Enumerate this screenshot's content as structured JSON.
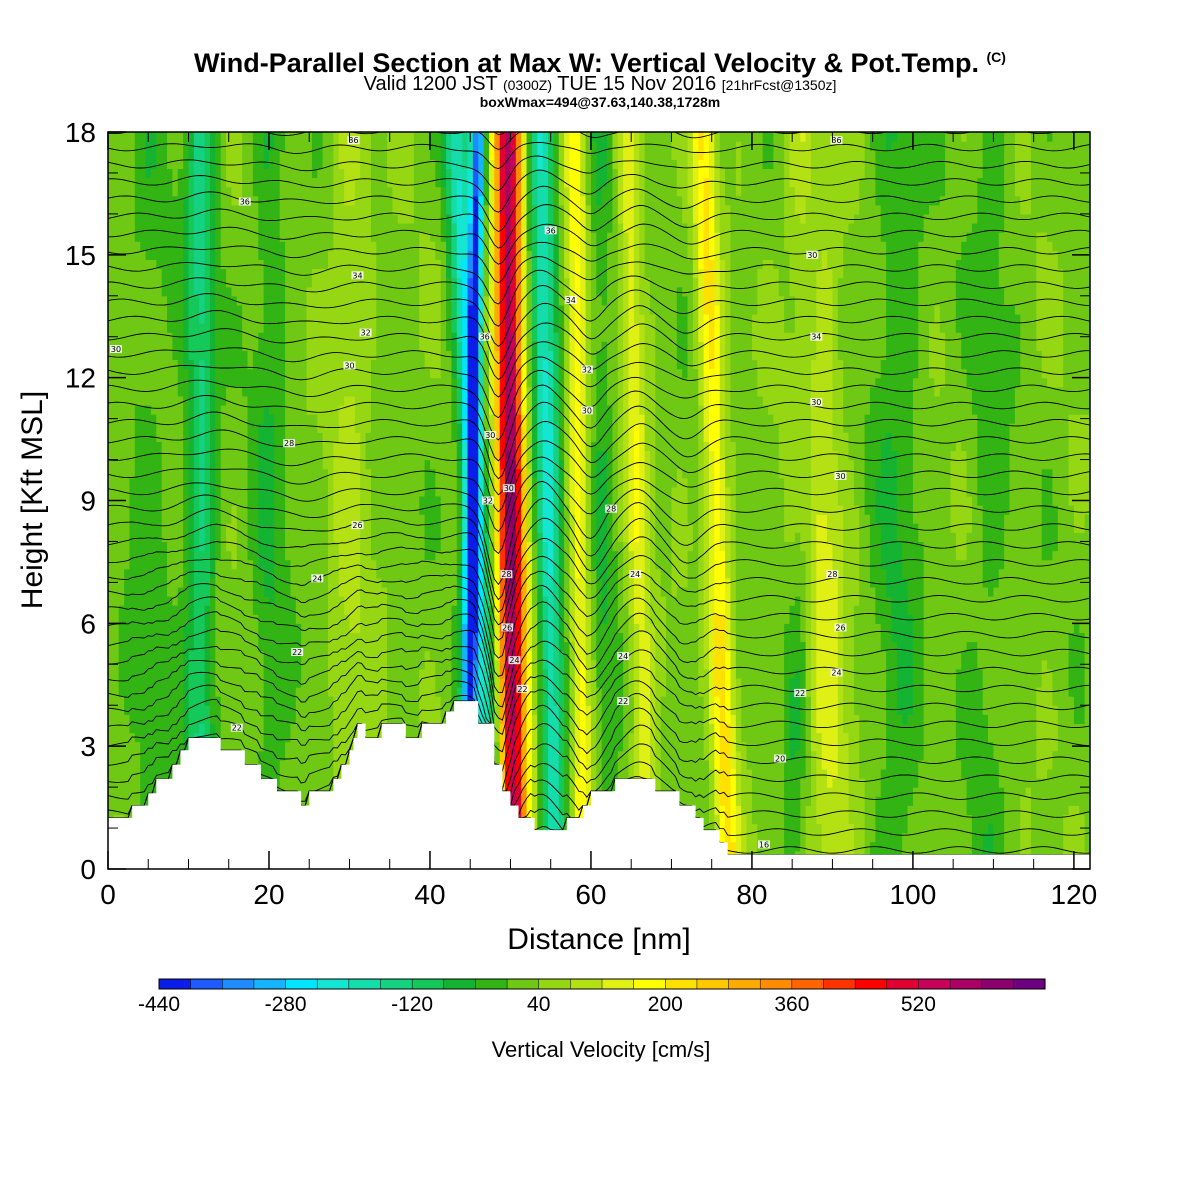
{
  "header": {
    "title_main": "Wind-Parallel Section at Max W: Vertical Velocity & Pot.Temp.",
    "title_mark": "(C)",
    "valid_a": "Valid 1200 JST",
    "valid_b": "(0300Z)",
    "valid_c": "TUE 15 Nov 2016",
    "valid_d": "[21hrFcst@1350z]",
    "subtitle2": "boxWmax=494@37.63,140.38,1728m"
  },
  "chart_data": {
    "type": "heatmap",
    "xlabel": "Distance [nm]",
    "ylabel": "Height [Kft MSL]",
    "xlim": [
      0,
      122
    ],
    "ylim": [
      0,
      18
    ],
    "x_ticks": [
      0,
      20,
      40,
      60,
      80,
      100,
      120
    ],
    "y_ticks": [
      0,
      3,
      6,
      9,
      12,
      15,
      18
    ],
    "colorbar": {
      "title": "Vertical Velocity [cm/s]",
      "label_values": [
        -440,
        -280,
        -120,
        40,
        200,
        360,
        520
      ],
      "labels": [
        "-440",
        "-280",
        "-120",
        "40",
        "200",
        "360",
        "520"
      ],
      "levels_start": -440,
      "level_step": 40,
      "colors": [
        "#0a1ee8",
        "#1e5aff",
        "#1e8cff",
        "#14b4ff",
        "#00e6ff",
        "#14e6d2",
        "#14dcaa",
        "#14d282",
        "#14c85a",
        "#14b432",
        "#32b414",
        "#6ec814",
        "#96d714",
        "#b4e114",
        "#e1f014",
        "#ffff00",
        "#ffe100",
        "#ffc800",
        "#ffaa00",
        "#ff8c00",
        "#ff6400",
        "#ff3200",
        "#ff0000",
        "#e10032",
        "#c8005a",
        "#aa0064",
        "#8c006e",
        "#6e0082"
      ]
    },
    "vertical_velocity_features": [
      {
        "x_base": 11.5,
        "x_top": 11.5,
        "w": 1.8,
        "v": -150
      },
      {
        "x_base": 20,
        "x_top": 20,
        "w": 2.2,
        "v": -60
      },
      {
        "x_base": 44.5,
        "x_top": 46,
        "w": 0.9,
        "v": -400
      },
      {
        "x_base": 47.8,
        "x_top": 43.2,
        "w": 1.6,
        "v": -230
      },
      {
        "x_base": 50.2,
        "x_top": 49.8,
        "w": 1.5,
        "v": 420
      },
      {
        "x_base": 51.5,
        "x_top": 48.8,
        "w": 2.2,
        "v": 160
      },
      {
        "x_base": 55.5,
        "x_top": 53.8,
        "w": 1.6,
        "v": -230
      },
      {
        "x_base": 59,
        "x_top": 58,
        "w": 1.3,
        "v": 150
      },
      {
        "x_base": 62,
        "x_top": 61,
        "w": 1.5,
        "v": -60
      },
      {
        "x_base": 67,
        "x_top": 64.5,
        "w": 1.5,
        "v": 120
      },
      {
        "x_base": 77,
        "x_top": 74,
        "w": 1.6,
        "v": 200
      },
      {
        "x_base": 90,
        "x_top": 87,
        "w": 2.8,
        "v": 110
      },
      {
        "x_base": 85,
        "x_top": 88,
        "w": 1.5,
        "v": -60
      },
      {
        "x_base": 98,
        "x_top": 98,
        "w": 3.0,
        "v": -60
      },
      {
        "x_base": 109,
        "x_top": 110,
        "w": 2.5,
        "v": -40
      },
      {
        "x_base": 30,
        "x_top": 30,
        "w": 2.5,
        "v": 60
      },
      {
        "x_base": 5,
        "x_top": 5,
        "w": 3,
        "v": -40
      },
      {
        "x_base": 75,
        "x_top": 75,
        "w": 2,
        "v": -30
      }
    ],
    "terrain_kft": [
      [
        0,
        1.25
      ],
      [
        3,
        1.25
      ],
      [
        3,
        1.55
      ],
      [
        5,
        1.55
      ],
      [
        5,
        1.85
      ],
      [
        6,
        1.85
      ],
      [
        6,
        2.2
      ],
      [
        8,
        2.2
      ],
      [
        8,
        2.55
      ],
      [
        9,
        2.55
      ],
      [
        9,
        2.9
      ],
      [
        10,
        2.9
      ],
      [
        10,
        3.2
      ],
      [
        14,
        3.2
      ],
      [
        14,
        2.9
      ],
      [
        17,
        2.9
      ],
      [
        17,
        2.55
      ],
      [
        19,
        2.55
      ],
      [
        19,
        2.2
      ],
      [
        21,
        2.2
      ],
      [
        21,
        1.9
      ],
      [
        24,
        1.9
      ],
      [
        24,
        1.55
      ],
      [
        25,
        1.55
      ],
      [
        25,
        1.9
      ],
      [
        28,
        1.9
      ],
      [
        28,
        2.2
      ],
      [
        29,
        2.2
      ],
      [
        29,
        2.55
      ],
      [
        30,
        2.55
      ],
      [
        30,
        2.9
      ],
      [
        30.5,
        2.9
      ],
      [
        30.5,
        3.2
      ],
      [
        31,
        3.2
      ],
      [
        31,
        3.55
      ],
      [
        32,
        3.55
      ],
      [
        32,
        3.2
      ],
      [
        34,
        3.2
      ],
      [
        34,
        3.55
      ],
      [
        37,
        3.55
      ],
      [
        37,
        3.2
      ],
      [
        39,
        3.2
      ],
      [
        39,
        3.55
      ],
      [
        42,
        3.55
      ],
      [
        42,
        3.85
      ],
      [
        43,
        3.85
      ],
      [
        43,
        4.1
      ],
      [
        46,
        4.1
      ],
      [
        46,
        3.55
      ],
      [
        48,
        3.55
      ],
      [
        48,
        2.55
      ],
      [
        49,
        2.55
      ],
      [
        49,
        1.9
      ],
      [
        50,
        1.9
      ],
      [
        50,
        1.55
      ],
      [
        51,
        1.55
      ],
      [
        51,
        1.25
      ],
      [
        53,
        1.25
      ],
      [
        53,
        0.95
      ],
      [
        57,
        0.95
      ],
      [
        57,
        1.25
      ],
      [
        59,
        1.25
      ],
      [
        59,
        1.55
      ],
      [
        60,
        1.55
      ],
      [
        60,
        1.9
      ],
      [
        63,
        1.9
      ],
      [
        63,
        2.2
      ],
      [
        68,
        2.2
      ],
      [
        68,
        1.9
      ],
      [
        71,
        1.9
      ],
      [
        71,
        1.55
      ],
      [
        73,
        1.55
      ],
      [
        73,
        1.25
      ],
      [
        74,
        1.25
      ],
      [
        74,
        0.95
      ],
      [
        76,
        0.95
      ],
      [
        76,
        0.65
      ],
      [
        77,
        0.65
      ],
      [
        77,
        0.35
      ],
      [
        122,
        0.35
      ]
    ],
    "theta_contours": {
      "low_kft": 0.4,
      "step_kft": 0.42,
      "count": 44,
      "labels_shown": [
        {
          "text": "36",
          "x": 30.5,
          "y": 17.8
        },
        {
          "text": "36",
          "x": 17,
          "y": 16.3
        },
        {
          "text": "34",
          "x": 31,
          "y": 14.5
        },
        {
          "text": "32",
          "x": 32,
          "y": 13.1
        },
        {
          "text": "30",
          "x": 30,
          "y": 12.3
        },
        {
          "text": "30",
          "x": 1,
          "y": 12.7
        },
        {
          "text": "28",
          "x": 22.5,
          "y": 10.4
        },
        {
          "text": "26",
          "x": 31,
          "y": 8.4
        },
        {
          "text": "24",
          "x": 26,
          "y": 7.1
        },
        {
          "text": "22",
          "x": 23.5,
          "y": 5.3
        },
        {
          "text": "22",
          "x": 16,
          "y": 3.45
        },
        {
          "text": "36",
          "x": 90.5,
          "y": 17.8
        },
        {
          "text": "36",
          "x": 55,
          "y": 15.6
        },
        {
          "text": "30",
          "x": 87.5,
          "y": 15.0
        },
        {
          "text": "34",
          "x": 57.5,
          "y": 13.9
        },
        {
          "text": "34",
          "x": 88,
          "y": 13.0
        },
        {
          "text": "32",
          "x": 59.5,
          "y": 12.2
        },
        {
          "text": "30",
          "x": 88,
          "y": 11.4
        },
        {
          "text": "30",
          "x": 59.5,
          "y": 11.2
        },
        {
          "text": "30",
          "x": 91,
          "y": 9.6
        },
        {
          "text": "30",
          "x": 47.5,
          "y": 10.6
        },
        {
          "text": "28",
          "x": 62.5,
          "y": 8.8
        },
        {
          "text": "28",
          "x": 90,
          "y": 7.2
        },
        {
          "text": "26",
          "x": 91,
          "y": 5.9
        },
        {
          "text": "24",
          "x": 65.5,
          "y": 7.2
        },
        {
          "text": "24",
          "x": 64,
          "y": 5.2
        },
        {
          "text": "24",
          "x": 90.5,
          "y": 4.8
        },
        {
          "text": "22",
          "x": 86,
          "y": 4.3
        },
        {
          "text": "20",
          "x": 83.5,
          "y": 2.7
        },
        {
          "text": "16",
          "x": 81.5,
          "y": 0.6
        },
        {
          "text": "36",
          "x": 46.8,
          "y": 13.0
        },
        {
          "text": "32",
          "x": 47.2,
          "y": 9.0
        },
        {
          "text": "30",
          "x": 49.8,
          "y": 9.3
        },
        {
          "text": "28",
          "x": 49.5,
          "y": 7.2
        },
        {
          "text": "26",
          "x": 49.6,
          "y": 5.9
        },
        {
          "text": "24",
          "x": 50.5,
          "y": 5.1
        },
        {
          "text": "22",
          "x": 51.5,
          "y": 4.4
        },
        {
          "text": "22",
          "x": 64,
          "y": 4.1
        }
      ]
    }
  }
}
